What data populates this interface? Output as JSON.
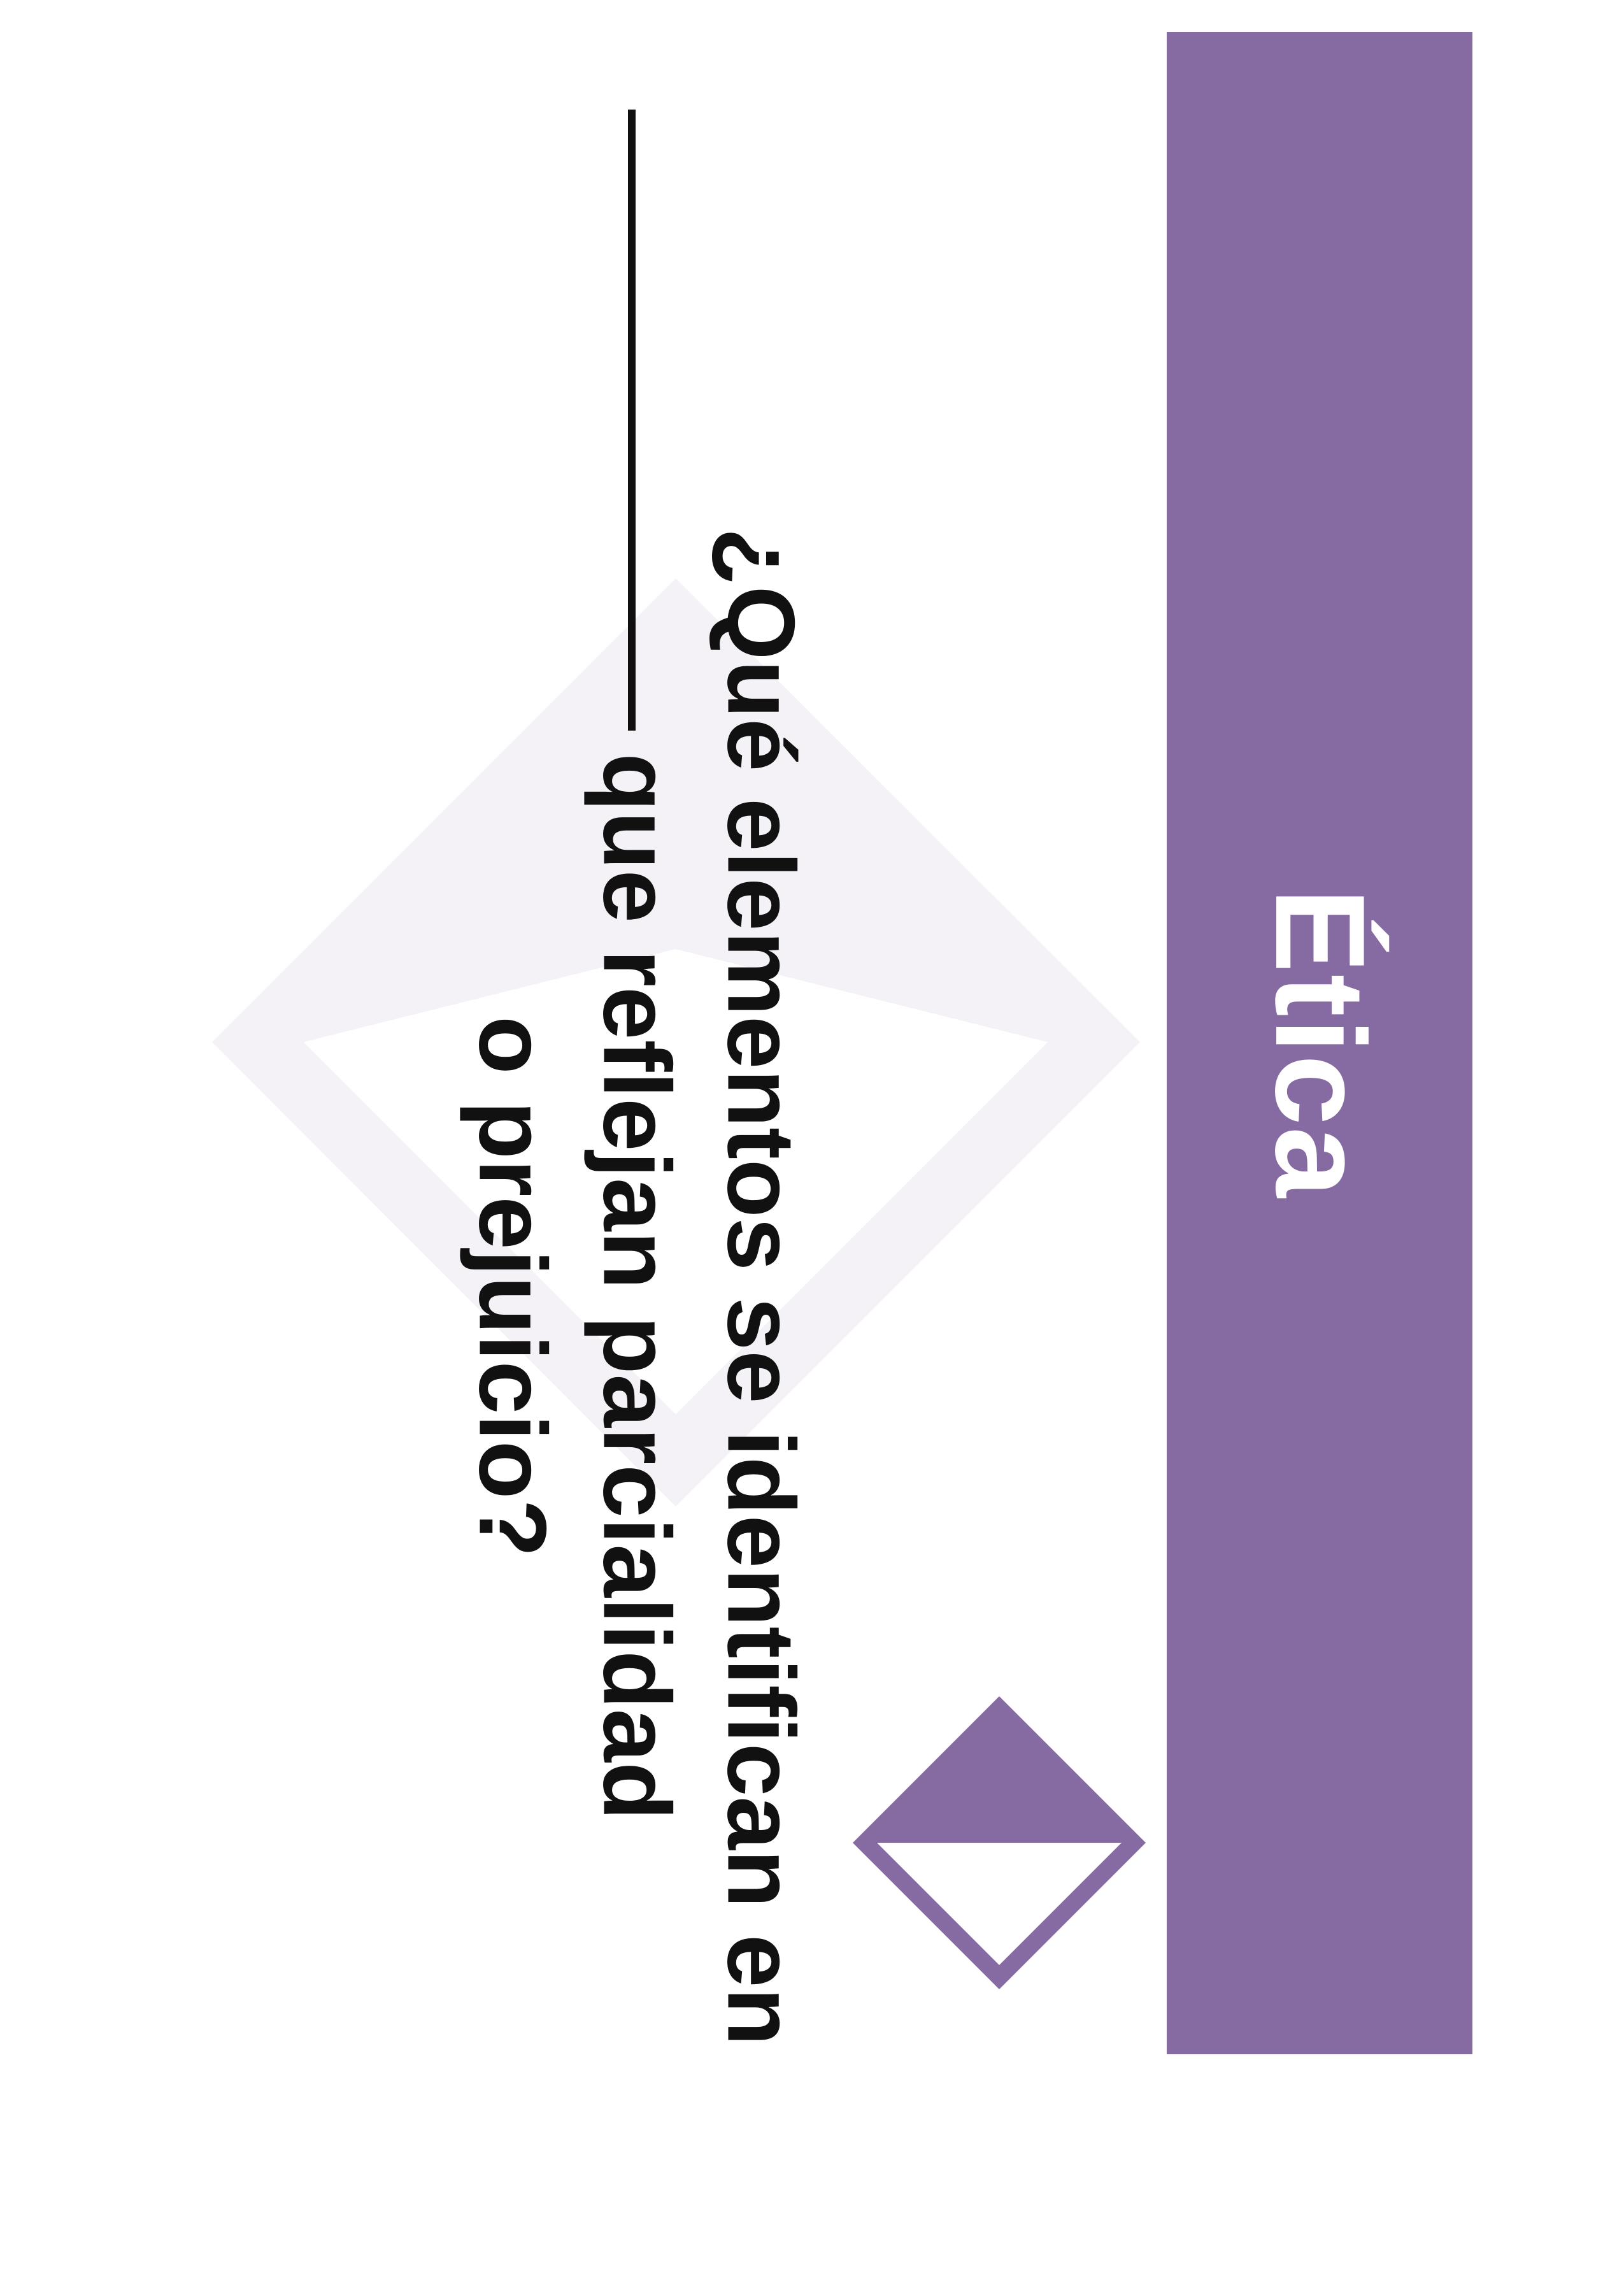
{
  "category": {
    "title": "Ética",
    "color": "#866ba2"
  },
  "question": {
    "lines": [
      "¿Qué elementos se identifican en",
      "que reflejan parcialidad",
      "o prejuicio?"
    ]
  },
  "icons": {
    "main": "diamond-icon",
    "background": "diamond-watermark-icon"
  },
  "colors": {
    "accent": "#866ba2",
    "watermark": "#f4f2f7",
    "text": "#111111",
    "background": "#ffffff"
  }
}
